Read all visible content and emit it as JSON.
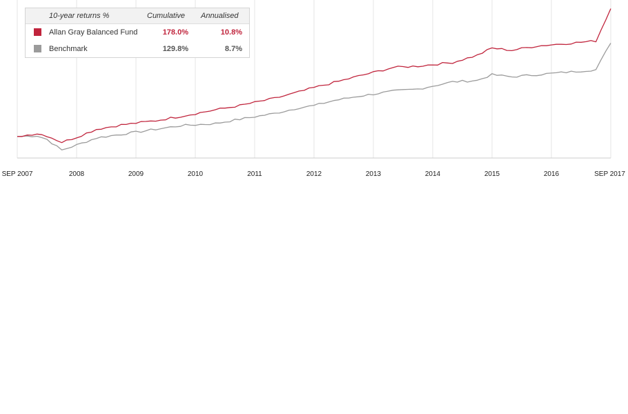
{
  "legend": {
    "header": {
      "title": "10-year returns %",
      "cumulative": "Cumulative",
      "annualised": "Annualised"
    },
    "rows": [
      {
        "name": "Allan Gray Balanced Fund",
        "cumulative": "178.0%",
        "annualised": "10.8%",
        "color": "#c0243c"
      },
      {
        "name": "Benchmark",
        "cumulative": "129.8%",
        "annualised": "8.7%",
        "color": "#9b9b9b"
      }
    ]
  },
  "chart_data": {
    "type": "line",
    "xlabel": "",
    "ylabel": "",
    "x_ticks": [
      "SEP 2007",
      "2008",
      "2009",
      "2010",
      "2011",
      "2012",
      "2013",
      "2014",
      "2015",
      "2016",
      "SEP 2017"
    ],
    "xlim": [
      "2007-09",
      "2017-09"
    ],
    "ylim": [
      70,
      290
    ],
    "grid": "vertical",
    "legend_position": "top-left",
    "series": [
      {
        "name": "Allan Gray Balanced Fund",
        "color": "#c0243c",
        "x": [
          "2007-09",
          "2008-01",
          "2008-03",
          "2008-06",
          "2008-09",
          "2009-01",
          "2009-06",
          "2010-01",
          "2010-06",
          "2011-01",
          "2011-06",
          "2012-01",
          "2012-06",
          "2012-09",
          "2013-01",
          "2013-06",
          "2014-01",
          "2014-06",
          "2015-01",
          "2015-06",
          "2015-09",
          "2016-01",
          "2016-06",
          "2017-01",
          "2017-06",
          "2017-09"
        ],
        "y": [
          100,
          104,
          101,
          92,
          99,
          110,
          116,
          122,
          128,
          137,
          143,
          153,
          162,
          168,
          175,
          184,
          196,
          198,
          203,
          213,
          223,
          220,
          226,
          230,
          233,
          278
        ]
      },
      {
        "name": "Benchmark",
        "color": "#9b9b9b",
        "x": [
          "2007-09",
          "2008-01",
          "2008-03",
          "2008-06",
          "2008-09",
          "2009-01",
          "2009-06",
          "2010-01",
          "2010-06",
          "2011-01",
          "2011-06",
          "2012-01",
          "2012-06",
          "2012-09",
          "2013-01",
          "2013-06",
          "2014-01",
          "2014-06",
          "2015-01",
          "2015-06",
          "2015-09",
          "2016-01",
          "2016-06",
          "2017-01",
          "2017-06",
          "2017-09"
        ],
        "y": [
          100,
          101,
          96,
          81,
          88,
          98,
          103,
          110,
          115,
          118,
          124,
          132,
          140,
          143,
          150,
          156,
          163,
          166,
          176,
          178,
          186,
          183,
          186,
          190,
          193,
          230
        ]
      }
    ]
  }
}
